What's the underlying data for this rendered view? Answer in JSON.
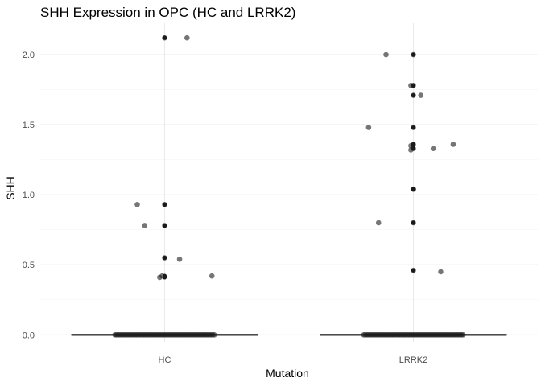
{
  "chart_data": {
    "type": "scatter",
    "title": "SHH Expression in OPC (HC and LRRK2)",
    "xlabel": "Mutation",
    "ylabel": "SHH",
    "categories": [
      "HC",
      "LRRK2"
    ],
    "ylim": [
      -0.05,
      2.23
    ],
    "yticks": [
      0.0,
      0.5,
      1.0,
      1.5,
      2.0
    ],
    "ytick_labels": [
      "0.0",
      "0.5",
      "1.0",
      "1.5",
      "2.0"
    ],
    "grid": true,
    "layers": [
      "boxplot",
      "jitter"
    ],
    "boxplot": [
      {
        "category": "HC",
        "min": 0,
        "q1": 0,
        "median": 0,
        "q3": 0,
        "max": 0
      },
      {
        "category": "LRRK2",
        "min": 0,
        "q1": 0,
        "median": 0,
        "q3": 0,
        "max": 0
      }
    ],
    "series": [
      {
        "category": "HC",
        "outliers": [
          2.12,
          0.93,
          0.78,
          0.55,
          0.42,
          0.41
        ],
        "points": [
          {
            "x": 0.0,
            "y": 2.12
          },
          {
            "x": 0.09,
            "y": 2.12
          },
          {
            "x": -0.11,
            "y": 0.93
          },
          {
            "x": 0.0,
            "y": 0.93
          },
          {
            "x": -0.08,
            "y": 0.78
          },
          {
            "x": 0.0,
            "y": 0.78
          },
          {
            "x": 0.0,
            "y": 0.55
          },
          {
            "x": 0.06,
            "y": 0.54
          },
          {
            "x": 0.19,
            "y": 0.42
          },
          {
            "x": -0.01,
            "y": 0.42
          },
          {
            "x": -0.02,
            "y": 0.41
          }
        ]
      },
      {
        "category": "LRRK2",
        "outliers": [
          2.0,
          1.78,
          1.71,
          1.48,
          1.36,
          1.35,
          1.33,
          1.04,
          0.8,
          0.46
        ],
        "points": [
          {
            "x": -0.11,
            "y": 2.0
          },
          {
            "x": 0.0,
            "y": 2.0
          },
          {
            "x": 0.0,
            "y": 1.78
          },
          {
            "x": -0.01,
            "y": 1.78
          },
          {
            "x": 0.0,
            "y": 1.71
          },
          {
            "x": 0.03,
            "y": 1.71
          },
          {
            "x": -0.18,
            "y": 1.48
          },
          {
            "x": 0.0,
            "y": 1.48
          },
          {
            "x": 0.16,
            "y": 1.36
          },
          {
            "x": 0.0,
            "y": 1.36
          },
          {
            "x": -0.01,
            "y": 1.35
          },
          {
            "x": 0.0,
            "y": 1.33
          },
          {
            "x": 0.08,
            "y": 1.33
          },
          {
            "x": -0.01,
            "y": 1.32
          },
          {
            "x": 0.0,
            "y": 1.04
          },
          {
            "x": 0.0,
            "y": 1.04
          },
          {
            "x": -0.14,
            "y": 0.8
          },
          {
            "x": 0.0,
            "y": 0.8
          },
          {
            "x": 0.0,
            "y": 0.46
          },
          {
            "x": 0.11,
            "y": 0.45
          }
        ]
      }
    ],
    "zero_cluster": {
      "y": 0.0,
      "x_spread": 0.2
    },
    "colors": {
      "points": "#1a1a1a",
      "box": "#333333",
      "grid_major": "#ebebeb",
      "grid_minor": "#f5f5f5"
    }
  }
}
